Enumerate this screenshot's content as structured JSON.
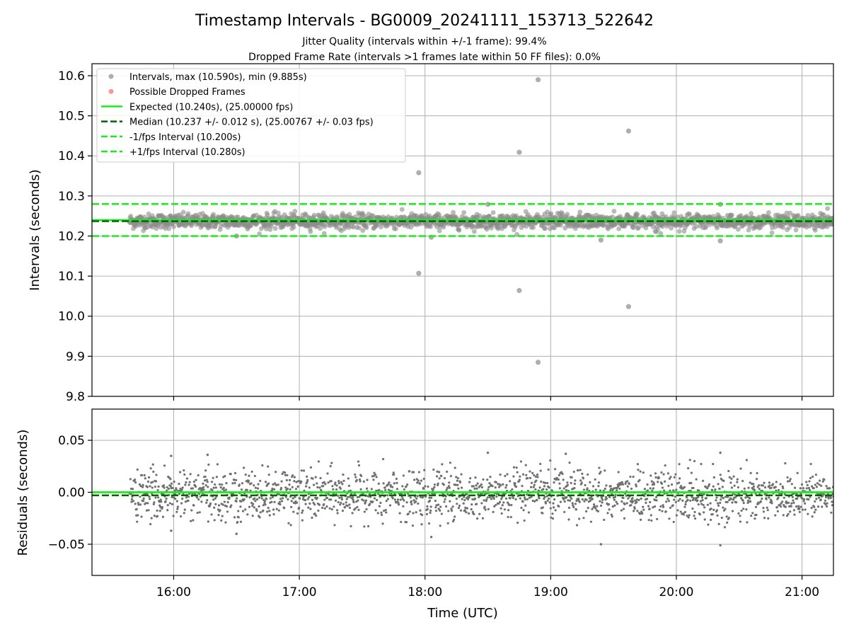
{
  "chart_data": {
    "type": "scatter",
    "title": "Timestamp Intervals - BG0009_20241111_153713_522642",
    "subtitle_lines": [
      "Jitter Quality (intervals within +/-1 frame): 99.4%",
      "Dropped Frame Rate (intervals >1 frames late within 50 FF files): 0.0%"
    ],
    "xlabel": "Time (UTC)",
    "x_range_hours": [
      15.35,
      21.25
    ],
    "x_ticks": [
      {
        "label": "16:00",
        "value": 16
      },
      {
        "label": "17:00",
        "value": 17
      },
      {
        "label": "18:00",
        "value": 18
      },
      {
        "label": "19:00",
        "value": 19
      },
      {
        "label": "20:00",
        "value": 20
      },
      {
        "label": "21:00",
        "value": 21
      }
    ],
    "grid": true,
    "legend_position": "top-left",
    "colors": {
      "interval_points": "#8c8c8c",
      "dropped_points": "#ff6666",
      "expected_line": "#1aee1a",
      "median_line": "#006400",
      "bound_lines": "#1aee1a",
      "residual_points": "#707070"
    },
    "data_span_hours": [
      15.65,
      21.25
    ],
    "top_panel": {
      "ylabel": "Intervals (seconds)",
      "ylim": [
        9.8,
        10.63
      ],
      "y_ticks": [
        "9.8",
        "9.9",
        "10.0",
        "10.1",
        "10.2",
        "10.3",
        "10.4",
        "10.5",
        "10.6"
      ],
      "y_tick_values": [
        9.8,
        9.9,
        10.0,
        10.1,
        10.2,
        10.3,
        10.4,
        10.5,
        10.6
      ],
      "expected": 10.24,
      "median": 10.237,
      "lower_bound": 10.2,
      "upper_bound": 10.28,
      "bulk_center": 10.237,
      "bulk_spread": 0.012,
      "bulk_count": 1900,
      "outliers": [
        {
          "x": 17.95,
          "y": 10.358
        },
        {
          "x": 17.95,
          "y": 10.107
        },
        {
          "x": 18.75,
          "y": 10.409
        },
        {
          "x": 18.75,
          "y": 10.064
        },
        {
          "x": 18.9,
          "y": 10.59
        },
        {
          "x": 18.9,
          "y": 9.885
        },
        {
          "x": 19.62,
          "y": 10.462
        },
        {
          "x": 19.62,
          "y": 10.024
        },
        {
          "x": 19.4,
          "y": 10.19
        },
        {
          "x": 20.35,
          "y": 10.188
        },
        {
          "x": 18.05,
          "y": 10.197
        },
        {
          "x": 16.5,
          "y": 10.2
        },
        {
          "x": 18.5,
          "y": 10.279
        },
        {
          "x": 20.35,
          "y": 10.279
        }
      ],
      "legend": [
        {
          "label": "Intervals, max (10.590s), min (9.885s)",
          "kind": "dot",
          "color": "#8c8c8c"
        },
        {
          "label": "Possible Dropped Frames",
          "kind": "dot",
          "color": "#ff6666"
        },
        {
          "label": "Expected (10.240s), (25.00000 fps)",
          "kind": "solid",
          "color": "#1aee1a"
        },
        {
          "label": "Median (10.237 +/- 0.012 s), (25.00767 +/- 0.03 fps)",
          "kind": "dash",
          "color": "#006400"
        },
        {
          "label": "-1/fps Interval (10.200s)",
          "kind": "dash",
          "color": "#1aee1a"
        },
        {
          "label": "+1/fps Interval (10.280s)",
          "kind": "dash",
          "color": "#1aee1a"
        }
      ]
    },
    "bottom_panel": {
      "ylabel": "Residuals (seconds)",
      "ylim": [
        -0.08,
        0.08
      ],
      "y_ticks": [
        "−0.05",
        "0.00",
        "0.05"
      ],
      "y_tick_values": [
        -0.05,
        0.0,
        0.05
      ],
      "expected_residual": 0.0,
      "median_residual": -0.003,
      "residual_spread": 0.012,
      "residual_count": 1900,
      "notable_points": [
        {
          "x": 15.98,
          "y": 0.035
        },
        {
          "x": 16.27,
          "y": 0.036
        },
        {
          "x": 18.5,
          "y": 0.038
        },
        {
          "x": 20.35,
          "y": 0.038
        },
        {
          "x": 19.12,
          "y": 0.037
        },
        {
          "x": 15.98,
          "y": -0.037
        },
        {
          "x": 16.5,
          "y": -0.04
        },
        {
          "x": 18.05,
          "y": -0.043
        },
        {
          "x": 19.4,
          "y": -0.05
        },
        {
          "x": 20.35,
          "y": -0.051
        }
      ]
    }
  }
}
